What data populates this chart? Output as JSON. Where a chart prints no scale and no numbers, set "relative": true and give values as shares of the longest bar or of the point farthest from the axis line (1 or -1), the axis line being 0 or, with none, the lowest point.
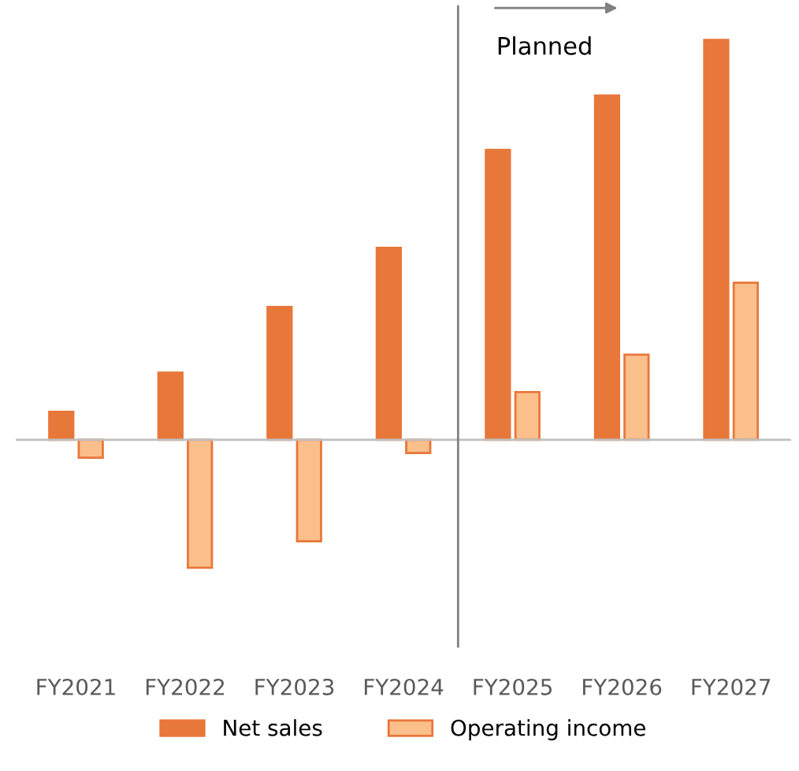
{
  "chart_data": {
    "type": "bar",
    "relative": true,
    "categories": [
      "FY2021",
      "FY2022",
      "FY2023",
      "FY2024",
      "FY2025",
      "FY2026",
      "FY2027"
    ],
    "series": [
      {
        "name": "Net sales",
        "color": "#e8773a",
        "values": [
          0.07,
          0.168,
          0.332,
          0.48,
          0.725,
          0.861,
          1
        ]
      },
      {
        "name": "Operating income",
        "color": "#fbbf8c",
        "values": [
          -0.045,
          -0.32,
          -0.254,
          -0.033,
          0.119,
          0.213,
          0.393
        ]
      }
    ],
    "annotations": [
      "Planned"
    ],
    "legend": "bottom",
    "grid": false
  }
}
